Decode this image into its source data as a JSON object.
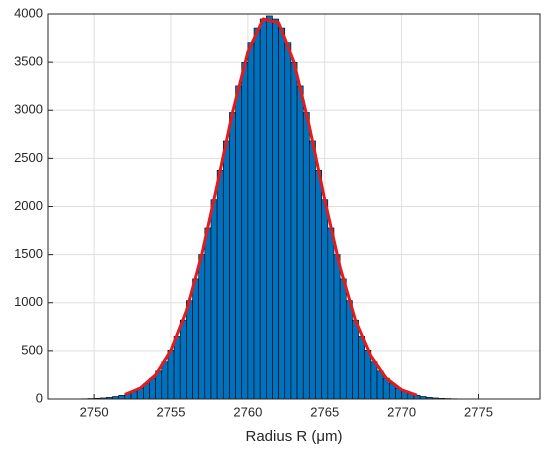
{
  "chart_data": {
    "type": "histogram",
    "xlabel": "Radius R (μm)",
    "bins": [
      2748.4,
      2748.8,
      2749.2,
      2749.6,
      2750,
      2750.4,
      2750.8,
      2751.2,
      2751.6,
      2752,
      2752.4,
      2752.8,
      2753.2,
      2753.6,
      2754,
      2754.4,
      2754.8,
      2755.2,
      2755.6,
      2756,
      2756.4,
      2756.8,
      2757.2,
      2757.6,
      2758,
      2758.4,
      2758.8,
      2759.2,
      2759.6,
      2760,
      2760.4,
      2760.8,
      2761.2,
      2761.6,
      2762,
      2762.4,
      2762.8,
      2763.2,
      2763.6,
      2764,
      2764.4,
      2764.8,
      2765.2,
      2765.6,
      2766,
      2766.4,
      2766.8,
      2767.2,
      2767.6,
      2768,
      2768.4,
      2768.8,
      2769.2,
      2769.6,
      2770,
      2770.4,
      2770.8,
      2771.2,
      2771.6,
      2772,
      2772.4,
      2772.8,
      2773.2,
      2773.6,
      2774,
      2774.4,
      2774.8,
      2775.2,
      2775.6,
      2776,
      2776.4
    ],
    "counts": [
      1,
      2,
      3,
      5,
      7,
      11,
      17,
      26,
      38,
      56,
      80,
      113,
      159,
      217,
      293,
      387,
      506,
      650,
      819,
      1022,
      1248,
      1501,
      1777,
      2071,
      2376,
      2681,
      2977,
      3253,
      3498,
      3702,
      3854,
      3948,
      3980,
      3948,
      3854,
      3702,
      3498,
      3253,
      2977,
      2681,
      2376,
      2071,
      1777,
      1501,
      1248,
      1022,
      819,
      650,
      506,
      387,
      293,
      217,
      159,
      113,
      80,
      56,
      38,
      26,
      17,
      11,
      7,
      5,
      3,
      2,
      1,
      1,
      0,
      1,
      0,
      0
    ],
    "color": "#0072bd",
    "fit": {
      "color": "#e41a1c",
      "x": [
        2752,
        2753,
        2754,
        2755,
        2756,
        2757,
        2758,
        2759,
        2760,
        2761,
        2762,
        2763,
        2764,
        2765,
        2766,
        2767,
        2768,
        2769,
        2770,
        2771
      ],
      "values": [
        47,
        113,
        252,
        506,
        914,
        1501,
        2224,
        2977,
        3606,
        3948,
        3909,
        3498,
        2831,
        2071,
        1370,
        819,
        445,
        217,
        96,
        38
      ]
    },
    "xlim": [
      2747,
      2779
    ],
    "xticks": [
      2750,
      2755,
      2760,
      2765,
      2770,
      2775
    ],
    "ylim": [
      0,
      4000
    ],
    "yticks": [
      0,
      500,
      1000,
      1500,
      2000,
      2500,
      3000,
      3500,
      4000
    ],
    "grid": true
  }
}
